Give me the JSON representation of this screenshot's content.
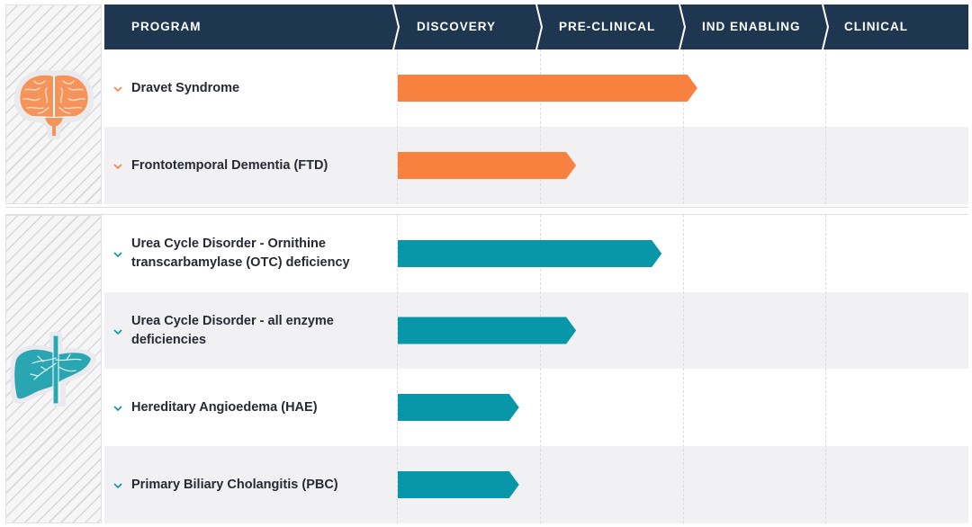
{
  "header": {
    "program_label": "PROGRAM",
    "stages": [
      "DISCOVERY",
      "PRE-CLINICAL",
      "IND ENABLING",
      "CLINICAL"
    ]
  },
  "colors": {
    "header_bg": "#1f3650",
    "neuro": "#f98140",
    "liver": "#0797a8",
    "row_alt": "#f1f1f3"
  },
  "sections": [
    {
      "icon": "brain-icon",
      "color": "#f98140",
      "programs": [
        {
          "name": "Dravet Syndrome"
        },
        {
          "name": "Frontotemporal Dementia (FTD)"
        }
      ]
    },
    {
      "icon": "liver-icon",
      "color": "#0797a8",
      "programs": [
        {
          "name": "Urea Cycle Disorder - Ornithine transcarbamylase (OTC) deficiency"
        },
        {
          "name": "Urea Cycle Disorder - all enzyme deficiencies"
        },
        {
          "name": "Hereditary Angioedema (HAE)"
        },
        {
          "name": "Primary Biliary Cholangitis (PBC)"
        }
      ]
    }
  ],
  "chart_data": {
    "type": "bar",
    "orientation": "horizontal",
    "title": "",
    "xlabel": "",
    "ylabel": "PROGRAM",
    "x_categories": [
      "DISCOVERY",
      "PRE-CLINICAL",
      "IND ENABLING",
      "CLINICAL"
    ],
    "xlim": [
      0,
      4
    ],
    "categories": [
      "Dravet Syndrome",
      "Frontotemporal Dementia (FTD)",
      "Urea Cycle Disorder - Ornithine transcarbamylase (OTC) deficiency",
      "Urea Cycle Disorder - all enzyme deficiencies",
      "Hereditary Angioedema (HAE)",
      "Primary Biliary Cholangitis (PBC)"
    ],
    "values": [
      2.1,
      1.25,
      1.85,
      1.25,
      0.85,
      0.85
    ],
    "value_units": "stages completed (1 = Discovery complete, 2 = Pre-Clinical complete)",
    "bar_colors": [
      "#f98140",
      "#f98140",
      "#0797a8",
      "#0797a8",
      "#0797a8",
      "#0797a8"
    ],
    "grid": true,
    "legend": "none"
  }
}
